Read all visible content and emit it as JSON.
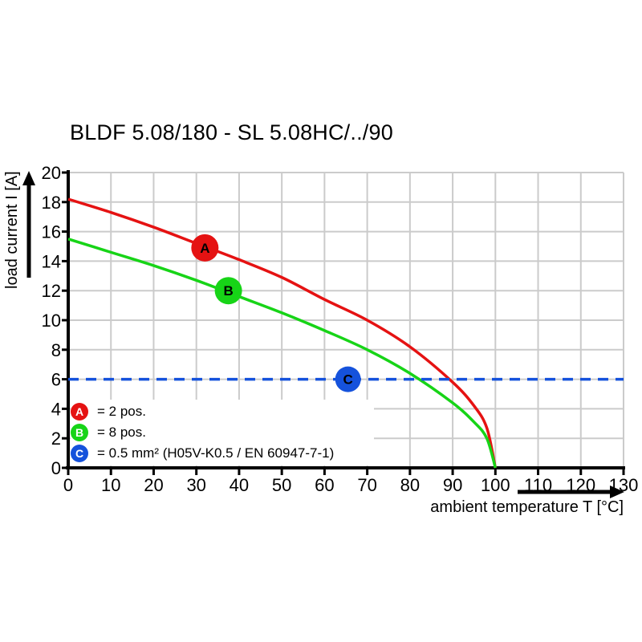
{
  "title": "BLDF 5.08/180 - SL 5.08HC/../90",
  "chart_data": {
    "type": "line",
    "title": "BLDF 5.08/180 - SL 5.08HC/../90",
    "xlabel": "ambient temperature T [°C]",
    "ylabel": "load current I [A]",
    "xlim": [
      0,
      130
    ],
    "ylim": [
      0,
      20
    ],
    "xticks": [
      0,
      10,
      20,
      30,
      40,
      50,
      60,
      70,
      80,
      90,
      100,
      110,
      120,
      130
    ],
    "yticks": [
      0,
      2,
      4,
      6,
      8,
      10,
      12,
      14,
      16,
      18,
      20
    ],
    "grid": true,
    "grid_color": "#cbcbcb",
    "axis_color": "#000000",
    "series": [
      {
        "name": "A",
        "label": "2 pos.",
        "color": "#e51212",
        "style": "solid",
        "points": [
          [
            0,
            18.2
          ],
          [
            10,
            17.3
          ],
          [
            20,
            16.3
          ],
          [
            30,
            15.2
          ],
          [
            40,
            14.1
          ],
          [
            50,
            12.9
          ],
          [
            60,
            11.4
          ],
          [
            70,
            10.0
          ],
          [
            80,
            8.2
          ],
          [
            90,
            5.8
          ],
          [
            95,
            4.2
          ],
          [
            98,
            2.7
          ],
          [
            100,
            0
          ]
        ]
      },
      {
        "name": "B",
        "label": "8 pos.",
        "color": "#17d417",
        "style": "solid",
        "points": [
          [
            0,
            15.5
          ],
          [
            10,
            14.6
          ],
          [
            20,
            13.7
          ],
          [
            30,
            12.7
          ],
          [
            40,
            11.6
          ],
          [
            50,
            10.5
          ],
          [
            60,
            9.3
          ],
          [
            70,
            8.0
          ],
          [
            80,
            6.4
          ],
          [
            90,
            4.4
          ],
          [
            95,
            3.1
          ],
          [
            98,
            2.0
          ],
          [
            100,
            0
          ]
        ]
      },
      {
        "name": "C",
        "label": "0.5 mm² (H05V-K0.5 / EN 60947-7-1)",
        "color": "#1552dc",
        "style": "dashed",
        "points": [
          [
            0,
            6
          ],
          [
            130,
            6
          ]
        ]
      }
    ],
    "markers": [
      {
        "letter": "A",
        "x": 32,
        "y": 14.9,
        "r": 17,
        "color": "#e51212"
      },
      {
        "letter": "B",
        "x": 37.5,
        "y": 12.0,
        "r": 17,
        "color": "#17d417"
      },
      {
        "letter": "C",
        "x": 65.5,
        "y": 6.0,
        "r": 16,
        "color": "#1552dc"
      }
    ],
    "legend_position": "bottom-left-inside"
  },
  "legend": {
    "items": [
      {
        "letter": "A",
        "color": "#e51212",
        "text": "= 2 pos."
      },
      {
        "letter": "B",
        "color": "#17d417",
        "text": "= 8 pos."
      },
      {
        "letter": "C",
        "color": "#1552dc",
        "text": "= 0.5 mm² (H05V-K0.5 / EN 60947-7-1)"
      }
    ]
  }
}
